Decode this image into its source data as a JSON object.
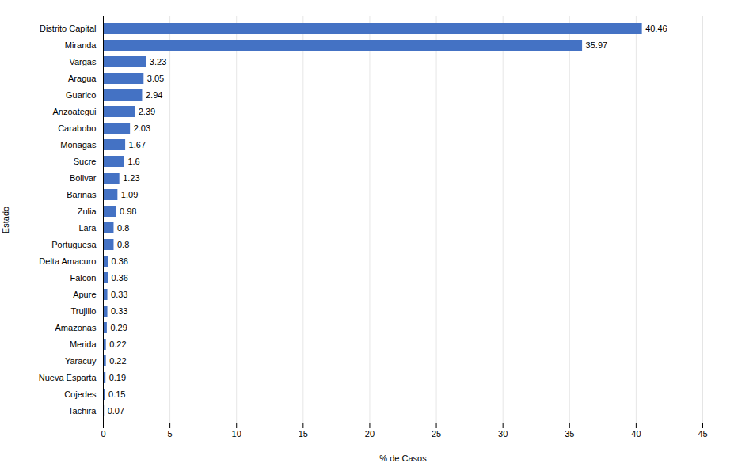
{
  "chart_data": {
    "type": "bar",
    "orientation": "horizontal",
    "categories": [
      "Distrito Capital",
      "Miranda",
      "Vargas",
      "Aragua",
      "Guarico",
      "Anzoategui",
      "Carabobo",
      "Monagas",
      "Sucre",
      "Bolivar",
      "Barinas",
      "Zulia",
      "Lara",
      "Portuguesa",
      "Delta Amacuro",
      "Falcon",
      "Apure",
      "Trujillo",
      "Amazonas",
      "Merida",
      "Yaracuy",
      "Nueva Esparta",
      "Cojedes",
      "Tachira"
    ],
    "values": [
      40.46,
      35.97,
      3.23,
      3.05,
      2.94,
      2.39,
      2.03,
      1.67,
      1.6,
      1.23,
      1.09,
      0.98,
      0.8,
      0.8,
      0.36,
      0.36,
      0.33,
      0.33,
      0.29,
      0.22,
      0.22,
      0.19,
      0.15,
      0.07
    ],
    "color": "#4472C4",
    "xlabel": "% de Casos",
    "ylabel": "Estado",
    "xlim": [
      0,
      45
    ],
    "xticks": [
      0,
      5,
      10,
      15,
      20,
      25,
      30,
      35,
      40,
      45
    ],
    "grid": true,
    "data_labels": true
  }
}
